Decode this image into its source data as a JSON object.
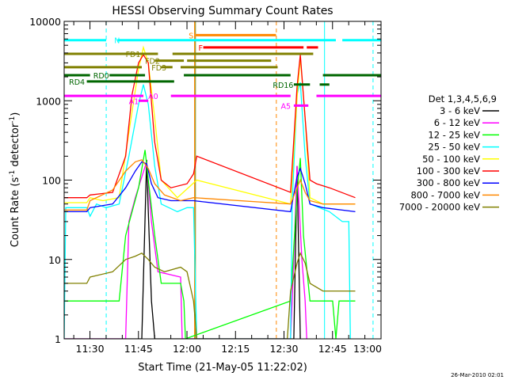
{
  "chart_data": {
    "type": "line",
    "title": "HESSI Observing Summary Count Rates",
    "xlabel": "Start Time (21-May-05 11:22:02)",
    "ylabel_main": "Count Rate (s",
    "ylabel_sup": "-1",
    "ylabel_tail": " detector",
    "ylabel_sup2": "-1",
    "ylabel_end": ")",
    "timestamp": "26-Mar-2010 02:01",
    "x_range_minutes": [
      0,
      97.97
    ],
    "x_ticks": [
      {
        "label": "11:30",
        "t": 7.97
      },
      {
        "label": "11:45",
        "t": 22.97
      },
      {
        "label": "12:00",
        "t": 37.97
      },
      {
        "label": "12:15",
        "t": 52.97
      },
      {
        "label": "12:30",
        "t": 67.97
      },
      {
        "label": "12:45",
        "t": 82.97
      },
      {
        "label": "13:00",
        "t": 97.97
      }
    ],
    "y_scale": "log",
    "y_range": [
      1,
      10000
    ],
    "y_ticks": [
      {
        "label": "1",
        "v": 1
      },
      {
        "label": "10",
        "v": 10
      },
      {
        "label": "100",
        "v": 100
      },
      {
        "label": "1000",
        "v": 1000
      },
      {
        "label": "10000",
        "v": 10000
      }
    ],
    "legend_title": "Det 1,3,4,5,6,9",
    "legend_position": "right",
    "series": [
      {
        "name": "3 - 6 keV",
        "color": "#000000",
        "points": [
          [
            0,
            1
          ],
          [
            24,
            1
          ],
          [
            25.5,
            180
          ],
          [
            26,
            40
          ],
          [
            27,
            3
          ],
          [
            28,
            1
          ],
          [
            71,
            1
          ],
          [
            72,
            150
          ],
          [
            73,
            1
          ]
        ]
      },
      {
        "name": "6 - 12 keV",
        "color": "#ff00ff",
        "points": [
          [
            0,
            1
          ],
          [
            19,
            1
          ],
          [
            20,
            30
          ],
          [
            22,
            60
          ],
          [
            24,
            110
          ],
          [
            25.5,
            170
          ],
          [
            27,
            30
          ],
          [
            29,
            7
          ],
          [
            36,
            6
          ],
          [
            36.5,
            1
          ],
          [
            70,
            1
          ],
          [
            70.5,
            3
          ],
          [
            72,
            150
          ],
          [
            73.5,
            10
          ],
          [
            74.5,
            3
          ],
          [
            75,
            1
          ]
        ]
      },
      {
        "name": "12 - 25 keV",
        "color": "#00ff00",
        "points": [
          [
            0,
            3
          ],
          [
            7,
            3
          ],
          [
            14,
            3
          ],
          [
            17,
            3
          ],
          [
            19,
            20
          ],
          [
            23,
            80
          ],
          [
            25,
            240
          ],
          [
            26,
            100
          ],
          [
            28,
            20
          ],
          [
            30,
            5
          ],
          [
            36,
            5
          ],
          [
            37,
            3
          ],
          [
            37.5,
            1
          ],
          [
            70,
            3
          ],
          [
            72,
            70
          ],
          [
            73,
            190
          ],
          [
            74,
            20
          ],
          [
            76,
            3
          ],
          [
            83,
            3
          ],
          [
            84,
            1
          ],
          [
            85,
            3
          ],
          [
            90,
            3
          ]
        ]
      },
      {
        "name": "25 - 50 keV",
        "color": "#00ffff",
        "points": [
          [
            0,
            1
          ],
          [
            0.5,
            45
          ],
          [
            7,
            45
          ],
          [
            8,
            35
          ],
          [
            10,
            50
          ],
          [
            13,
            45
          ],
          [
            17,
            50
          ],
          [
            20,
            200
          ],
          [
            23,
            900
          ],
          [
            24.5,
            1600
          ],
          [
            26,
            900
          ],
          [
            28,
            150
          ],
          [
            30,
            50
          ],
          [
            35,
            40
          ],
          [
            38,
            45
          ],
          [
            40,
            45
          ],
          [
            41,
            1
          ],
          [
            70,
            1
          ],
          [
            70.5,
            50
          ],
          [
            72,
            1200
          ],
          [
            73,
            1700
          ],
          [
            74.5,
            200
          ],
          [
            76,
            50
          ],
          [
            82,
            40
          ],
          [
            86,
            30
          ],
          [
            88,
            30
          ],
          [
            88.5,
            1
          ]
        ]
      },
      {
        "name": "50 - 100 keV",
        "color": "#ffff00",
        "points": [
          [
            0,
            52
          ],
          [
            7,
            52
          ],
          [
            8,
            60
          ],
          [
            12,
            55
          ],
          [
            17,
            60
          ],
          [
            20,
            400
          ],
          [
            23,
            2500
          ],
          [
            24.5,
            4700
          ],
          [
            26,
            3000
          ],
          [
            28,
            600
          ],
          [
            30,
            100
          ],
          [
            35,
            60
          ],
          [
            41,
            100
          ],
          [
            70,
            50
          ],
          [
            72,
            1100
          ],
          [
            73,
            3500
          ],
          [
            74.5,
            600
          ],
          [
            76,
            60
          ],
          [
            80,
            50
          ],
          [
            90,
            50
          ]
        ]
      },
      {
        "name": "100 - 300 keV",
        "color": "#ff0000",
        "points": [
          [
            0,
            60
          ],
          [
            7,
            60
          ],
          [
            8,
            65
          ],
          [
            15,
            70
          ],
          [
            19,
            200
          ],
          [
            21,
            1200
          ],
          [
            23,
            3000
          ],
          [
            24.5,
            3800
          ],
          [
            26,
            3000
          ],
          [
            28,
            300
          ],
          [
            30,
            100
          ],
          [
            33,
            80
          ],
          [
            38,
            90
          ],
          [
            40,
            120
          ],
          [
            41,
            200
          ],
          [
            70,
            70
          ],
          [
            72,
            1500
          ],
          [
            73,
            3800
          ],
          [
            74.5,
            600
          ],
          [
            76,
            100
          ],
          [
            78,
            90
          ],
          [
            82,
            80
          ],
          [
            90,
            60
          ]
        ]
      },
      {
        "name": "300 - 800 keV",
        "color": "#0000ff",
        "points": [
          [
            0,
            40
          ],
          [
            7,
            40
          ],
          [
            8,
            45
          ],
          [
            15,
            50
          ],
          [
            19,
            80
          ],
          [
            22,
            130
          ],
          [
            24,
            170
          ],
          [
            25.5,
            160
          ],
          [
            27,
            90
          ],
          [
            29,
            60
          ],
          [
            33,
            55
          ],
          [
            40,
            55
          ],
          [
            70,
            40
          ],
          [
            72,
            110
          ],
          [
            73,
            140
          ],
          [
            74.5,
            90
          ],
          [
            76,
            50
          ],
          [
            80,
            45
          ],
          [
            90,
            40
          ]
        ]
      },
      {
        "name": "800 - 7000 keV",
        "color": "#ff8800",
        "points": [
          [
            0,
            42
          ],
          [
            7,
            42
          ],
          [
            8,
            55
          ],
          [
            15,
            75
          ],
          [
            19,
            130
          ],
          [
            22,
            170
          ],
          [
            24,
            180
          ],
          [
            26,
            140
          ],
          [
            28,
            90
          ],
          [
            31,
            65
          ],
          [
            36,
            55
          ],
          [
            40,
            60
          ],
          [
            70,
            50
          ],
          [
            72,
            80
          ],
          [
            73,
            100
          ],
          [
            74.5,
            70
          ],
          [
            76,
            55
          ],
          [
            80,
            50
          ],
          [
            90,
            50
          ]
        ]
      },
      {
        "name": "7000 - 20000 keV",
        "color": "#808000",
        "points": [
          [
            0,
            5
          ],
          [
            7,
            5
          ],
          [
            8,
            6
          ],
          [
            15,
            7
          ],
          [
            19,
            10
          ],
          [
            22,
            11
          ],
          [
            24,
            12
          ],
          [
            26,
            10
          ],
          [
            28,
            8
          ],
          [
            31,
            7
          ],
          [
            36,
            8
          ],
          [
            38,
            7
          ],
          [
            40,
            3
          ],
          [
            41,
            1
          ],
          [
            69,
            1
          ],
          [
            70,
            4
          ],
          [
            72,
            9
          ],
          [
            73,
            12
          ],
          [
            74.5,
            9
          ],
          [
            76,
            5
          ],
          [
            80,
            4
          ],
          [
            90,
            4
          ]
        ]
      }
    ],
    "annotations": [
      {
        "text": "N",
        "color": "#00ffff",
        "x": 15.5,
        "v": 5800,
        "bars": [
          [
            0,
            13
          ],
          [
            16.5,
            84
          ],
          [
            86,
            98
          ]
        ]
      },
      {
        "text": "S",
        "color": "#ff8800",
        "x": 38.5,
        "v": 6700,
        "bars": [
          [
            40.5,
            65.5
          ]
        ]
      },
      {
        "text": "F",
        "color": "#ff0000",
        "x": 41.5,
        "v": 4700,
        "bars": [
          [
            43,
            74
          ],
          [
            75,
            78.5
          ]
        ]
      },
      {
        "text": "FD1",
        "color": "#808000",
        "x": 19,
        "v": 3900,
        "bars": [
          [
            0,
            29
          ],
          [
            33.5,
            77
          ]
        ]
      },
      {
        "text": "FD2",
        "color": "#808000",
        "x": 25,
        "v": 3200,
        "bars": [
          [
            28,
            37
          ],
          [
            38,
            64
          ]
        ]
      },
      {
        "text": "FD3",
        "color": "#808000",
        "x": 27,
        "v": 2650,
        "bars": [
          [
            0,
            24
          ],
          [
            30,
            33.5
          ],
          [
            36,
            66
          ]
        ]
      },
      {
        "text": "RD0",
        "color": "#006600",
        "x": 9,
        "v": 2100,
        "bars": [
          [
            0,
            8
          ],
          [
            14,
            25
          ],
          [
            37,
            70
          ],
          [
            80,
            98
          ]
        ]
      },
      {
        "text": "RD4",
        "color": "#006600",
        "x": 1.5,
        "v": 1750,
        "bars": [
          [
            7,
            34
          ]
        ]
      },
      {
        "text": "RD16",
        "color": "#006600",
        "x": 64.5,
        "v": 1600,
        "bars": [
          [
            71,
            76
          ],
          [
            79,
            82
          ]
        ]
      },
      {
        "text": "A0",
        "color": "#ff00ff",
        "x": 26,
        "v": 1150,
        "bars": [
          [
            0,
            24.5
          ],
          [
            33,
            70
          ],
          [
            78,
            98
          ]
        ]
      },
      {
        "text": "A1",
        "color": "#ff00ff",
        "x": 20,
        "v": 1000,
        "bars": [
          [
            23,
            26
          ]
        ]
      },
      {
        "text": "A5",
        "color": "#ff00ff",
        "x": 67,
        "v": 870,
        "bars": [
          [
            71,
            75.5
          ]
        ]
      }
    ],
    "vlines": [
      {
        "t": 13,
        "color": "#00ffff",
        "style": "dashed"
      },
      {
        "t": 40.3,
        "color": "#ff8800",
        "style": "solid"
      },
      {
        "t": 40.6,
        "color": "#808000",
        "style": "solid"
      },
      {
        "t": 65.6,
        "color": "#ff8800",
        "style": "dashed"
      },
      {
        "t": 80.5,
        "color": "#00ffff",
        "style": "solid"
      },
      {
        "t": 95.5,
        "color": "#00ffff",
        "style": "dashed"
      }
    ]
  }
}
